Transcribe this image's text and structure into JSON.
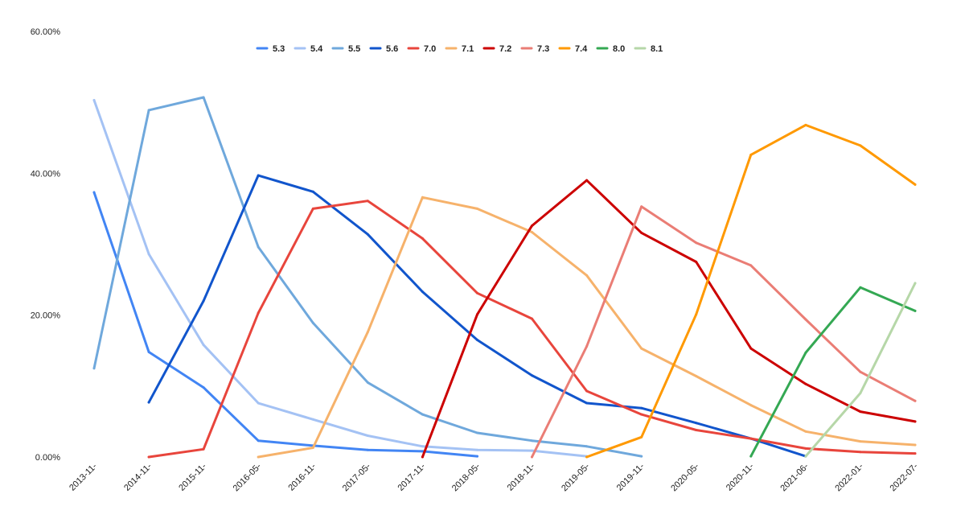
{
  "chart_data": {
    "type": "line",
    "title": "",
    "xlabel": "",
    "ylabel": "",
    "ylim": [
      0,
      60
    ],
    "y_ticks": [
      "0.00%",
      "20.00%",
      "40.00%",
      "60.00%"
    ],
    "y_tick_values": [
      0,
      20,
      40,
      60
    ],
    "grid": false,
    "legend_position": "top",
    "categories": [
      "2013-11-",
      "2014-11-",
      "2015-11-",
      "2016-05-",
      "2016-11-",
      "2017-05-",
      "2017-11-",
      "2018-05-",
      "2018-11-",
      "2019-05-",
      "2019-11-",
      "2020-05-",
      "2020-11-",
      "2021-06-",
      "2022-01-",
      "2022-07-"
    ],
    "series": [
      {
        "name": "5.3",
        "color": "#4285f4",
        "values": [
          37.3,
          14.8,
          9.8,
          2.3,
          1.6,
          1.0,
          0.8,
          0.1,
          null,
          null,
          null,
          null,
          null,
          null,
          null,
          null
        ]
      },
      {
        "name": "5.4",
        "color": "#a4c2f4",
        "values": [
          50.3,
          28.6,
          15.8,
          7.6,
          5.3,
          3.0,
          1.5,
          1.0,
          0.9,
          0.1,
          null,
          null,
          null,
          null,
          null,
          null
        ]
      },
      {
        "name": "5.5",
        "color": "#6fa8dc",
        "values": [
          12.5,
          48.9,
          50.7,
          29.6,
          18.9,
          10.5,
          6.0,
          3.4,
          2.3,
          1.5,
          0.1,
          null,
          null,
          null,
          null,
          null
        ]
      },
      {
        "name": "5.6",
        "color": "#1155cc",
        "values": [
          null,
          7.7,
          22.0,
          39.7,
          37.4,
          31.4,
          23.3,
          16.5,
          11.5,
          7.6,
          6.9,
          4.8,
          2.6,
          0.1,
          null,
          null
        ]
      },
      {
        "name": "7.0",
        "color": "#e8453c",
        "values": [
          null,
          0.0,
          1.1,
          20.3,
          35.0,
          36.1,
          30.8,
          23.1,
          19.5,
          9.3,
          6.0,
          3.8,
          2.6,
          1.2,
          0.7,
          0.5
        ]
      },
      {
        "name": "7.1",
        "color": "#f6b26b",
        "values": [
          null,
          null,
          null,
          0.0,
          1.3,
          17.6,
          36.6,
          35.0,
          31.7,
          25.6,
          15.3,
          11.4,
          7.3,
          3.6,
          2.2,
          1.7
        ]
      },
      {
        "name": "7.2",
        "color": "#cc0000",
        "values": [
          null,
          null,
          null,
          null,
          null,
          null,
          0.0,
          20.1,
          32.6,
          39.0,
          31.6,
          27.5,
          15.3,
          10.3,
          6.4,
          5.0
        ]
      },
      {
        "name": "7.3",
        "color": "#ea7d75",
        "values": [
          null,
          null,
          null,
          null,
          null,
          null,
          null,
          null,
          0.0,
          15.6,
          35.3,
          30.2,
          27.0,
          19.4,
          12.0,
          7.9
        ]
      },
      {
        "name": "7.4",
        "color": "#ff9900",
        "values": [
          null,
          null,
          null,
          null,
          null,
          null,
          null,
          null,
          null,
          0.0,
          2.8,
          20.1,
          42.6,
          46.8,
          43.9,
          38.4
        ]
      },
      {
        "name": "8.0",
        "color": "#34a853",
        "values": [
          null,
          null,
          null,
          null,
          null,
          null,
          null,
          null,
          null,
          null,
          null,
          null,
          0.1,
          14.7,
          23.9,
          20.6
        ]
      },
      {
        "name": "8.1",
        "color": "#b6d7a8",
        "values": [
          null,
          null,
          null,
          null,
          null,
          null,
          null,
          null,
          null,
          null,
          null,
          null,
          null,
          0.1,
          9.0,
          24.5
        ]
      }
    ]
  }
}
